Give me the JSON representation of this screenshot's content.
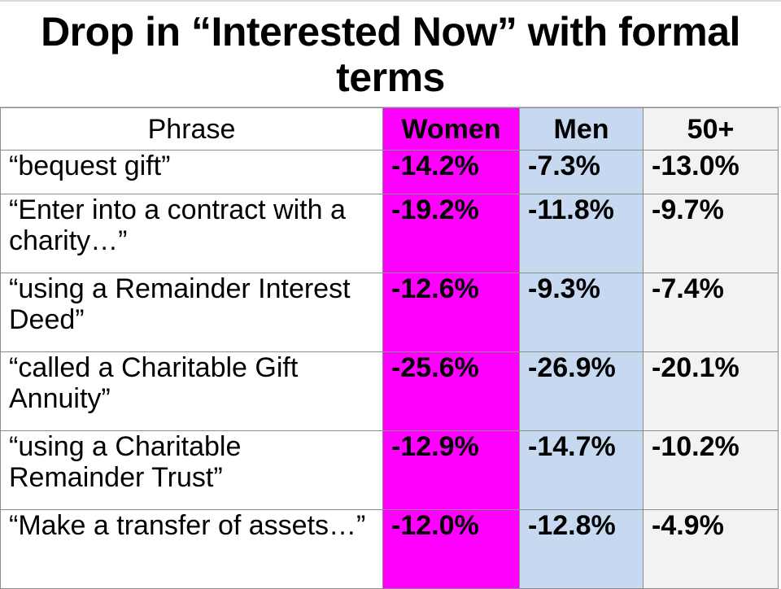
{
  "title": "Drop in “Interested Now” with formal terms",
  "table": {
    "headers": [
      "Phrase",
      "Women",
      "Men",
      "50+"
    ],
    "rows": [
      {
        "phrase": "“bequest gift”",
        "women": "-14.2%",
        "men": "-7.3%",
        "fifty_plus": "-13.0%"
      },
      {
        "phrase": "“Enter into a contract with a charity…”",
        "women": "-19.2%",
        "men": "-11.8%",
        "fifty_plus": "-9.7%"
      },
      {
        "phrase": "“using a Remainder Interest Deed”",
        "women": "-12.6%",
        "men": "-9.3%",
        "fifty_plus": "-7.4%"
      },
      {
        "phrase": "“called a Charitable Gift Annuity”",
        "women": "-25.6%",
        "men": "-26.9%",
        "fifty_plus": "-20.1%"
      },
      {
        "phrase": "“using a Charitable Remainder Trust”",
        "women": "-12.9%",
        "men": "-14.7%",
        "fifty_plus": "-10.2%"
      },
      {
        "phrase": "“Make a transfer of assets…”",
        "women": "-12.0%",
        "men": "-12.8%",
        "fifty_plus": "-4.9%"
      }
    ]
  },
  "colors": {
    "women_column": "#ff00ff",
    "men_column": "#c6d9f1",
    "fifty_plus_column": "#f2f2f2"
  }
}
